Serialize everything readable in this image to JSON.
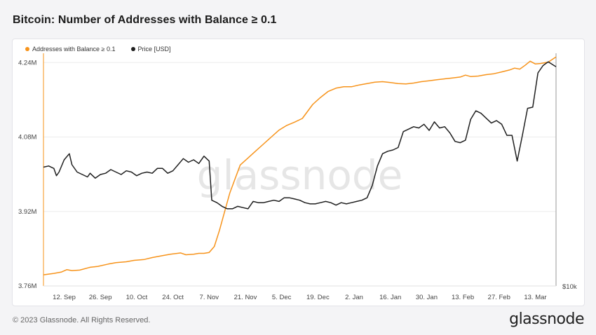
{
  "title": "Bitcoin: Number of Addresses with Balance ≥ 0.1",
  "footer": "© 2023 Glassnode. All Rights Reserved.",
  "brand": "glassnode",
  "watermark": "glassnode",
  "chart_data": {
    "type": "line",
    "legend_position": "top-left",
    "grid": true,
    "y_left": {
      "ticks": [
        "3.76M",
        "3.92M",
        "4.08M",
        "4.24M"
      ],
      "values": [
        3760000,
        3920000,
        4080000,
        4240000
      ],
      "range": [
        3760000,
        4260000
      ]
    },
    "y_right": {
      "label": "$10k"
    },
    "x_ticks": [
      "12. Sep",
      "26. Sep",
      "10. Oct",
      "24. Oct",
      "7. Nov",
      "21. Nov",
      "5. Dec",
      "19. Dec",
      "2. Jan",
      "16. Jan",
      "30. Jan",
      "13. Feb",
      "27. Feb",
      "13. Mar"
    ],
    "x_tick_days": [
      8,
      22,
      36,
      50,
      64,
      78,
      92,
      106,
      120,
      134,
      148,
      162,
      176,
      190
    ],
    "x_range_days": [
      0,
      198
    ],
    "price_range_usd": [
      10000,
      29000
    ],
    "series": [
      {
        "name": "Addresses with Balance ≥ 0.1",
        "color": "#f7931a",
        "points": [
          [
            0,
            3784000
          ],
          [
            4,
            3787000
          ],
          [
            7,
            3790000
          ],
          [
            9,
            3795000
          ],
          [
            11,
            3793000
          ],
          [
            14,
            3794000
          ],
          [
            18,
            3800000
          ],
          [
            21,
            3802000
          ],
          [
            25,
            3807000
          ],
          [
            28,
            3810000
          ],
          [
            32,
            3812000
          ],
          [
            35,
            3815000
          ],
          [
            39,
            3817000
          ],
          [
            42,
            3821000
          ],
          [
            46,
            3825000
          ],
          [
            49,
            3828000
          ],
          [
            53,
            3831000
          ],
          [
            55,
            3827000
          ],
          [
            58,
            3828000
          ],
          [
            60,
            3830000
          ],
          [
            62,
            3830000
          ],
          [
            64,
            3832000
          ],
          [
            66,
            3845000
          ],
          [
            68,
            3880000
          ],
          [
            70,
            3920000
          ],
          [
            72,
            3960000
          ],
          [
            74,
            3990000
          ],
          [
            76,
            4020000
          ],
          [
            79,
            4035000
          ],
          [
            82,
            4050000
          ],
          [
            85,
            4065000
          ],
          [
            88,
            4080000
          ],
          [
            91,
            4095000
          ],
          [
            94,
            4105000
          ],
          [
            97,
            4112000
          ],
          [
            100,
            4120000
          ],
          [
            102,
            4135000
          ],
          [
            104,
            4150000
          ],
          [
            107,
            4165000
          ],
          [
            110,
            4178000
          ],
          [
            113,
            4185000
          ],
          [
            116,
            4188000
          ],
          [
            119,
            4188000
          ],
          [
            122,
            4192000
          ],
          [
            125,
            4195000
          ],
          [
            128,
            4198000
          ],
          [
            131,
            4199000
          ],
          [
            134,
            4197000
          ],
          [
            137,
            4195000
          ],
          [
            140,
            4194000
          ],
          [
            143,
            4196000
          ],
          [
            146,
            4199000
          ],
          [
            149,
            4201000
          ],
          [
            152,
            4203000
          ],
          [
            155,
            4205000
          ],
          [
            158,
            4207000
          ],
          [
            161,
            4209000
          ],
          [
            163,
            4213000
          ],
          [
            165,
            4210000
          ],
          [
            168,
            4211000
          ],
          [
            171,
            4214000
          ],
          [
            174,
            4216000
          ],
          [
            177,
            4220000
          ],
          [
            180,
            4224000
          ],
          [
            182,
            4228000
          ],
          [
            184,
            4226000
          ],
          [
            186,
            4234000
          ],
          [
            188,
            4243000
          ],
          [
            190,
            4237000
          ],
          [
            192,
            4238000
          ],
          [
            195,
            4241000
          ],
          [
            198,
            4252000
          ]
        ]
      },
      {
        "name": "Price [USD]",
        "color": "#1f1f1f",
        "points": [
          [
            0,
            19700
          ],
          [
            2,
            19800
          ],
          [
            4,
            19600
          ],
          [
            5,
            19000
          ],
          [
            6,
            19300
          ],
          [
            8,
            20300
          ],
          [
            10,
            20800
          ],
          [
            11,
            19900
          ],
          [
            13,
            19300
          ],
          [
            15,
            19100
          ],
          [
            17,
            18900
          ],
          [
            18,
            19200
          ],
          [
            20,
            18800
          ],
          [
            22,
            19100
          ],
          [
            24,
            19200
          ],
          [
            26,
            19500
          ],
          [
            28,
            19300
          ],
          [
            30,
            19100
          ],
          [
            32,
            19400
          ],
          [
            34,
            19300
          ],
          [
            36,
            19000
          ],
          [
            38,
            19200
          ],
          [
            40,
            19300
          ],
          [
            42,
            19200
          ],
          [
            44,
            19600
          ],
          [
            46,
            19600
          ],
          [
            48,
            19200
          ],
          [
            50,
            19400
          ],
          [
            52,
            19900
          ],
          [
            54,
            20400
          ],
          [
            56,
            20100
          ],
          [
            58,
            20300
          ],
          [
            60,
            20000
          ],
          [
            62,
            20600
          ],
          [
            64,
            20200
          ],
          [
            65,
            17000
          ],
          [
            67,
            16800
          ],
          [
            69,
            16500
          ],
          [
            71,
            16300
          ],
          [
            73,
            16300
          ],
          [
            75,
            16500
          ],
          [
            77,
            16400
          ],
          [
            79,
            16300
          ],
          [
            81,
            16900
          ],
          [
            83,
            16800
          ],
          [
            85,
            16800
          ],
          [
            87,
            16900
          ],
          [
            89,
            17000
          ],
          [
            91,
            16900
          ],
          [
            93,
            17200
          ],
          [
            95,
            17200
          ],
          [
            97,
            17100
          ],
          [
            99,
            17000
          ],
          [
            101,
            16800
          ],
          [
            103,
            16700
          ],
          [
            105,
            16700
          ],
          [
            107,
            16800
          ],
          [
            109,
            16900
          ],
          [
            111,
            16800
          ],
          [
            113,
            16600
          ],
          [
            115,
            16800
          ],
          [
            117,
            16700
          ],
          [
            119,
            16800
          ],
          [
            121,
            16900
          ],
          [
            123,
            17000
          ],
          [
            125,
            17200
          ],
          [
            127,
            18200
          ],
          [
            129,
            19800
          ],
          [
            131,
            20800
          ],
          [
            133,
            21000
          ],
          [
            135,
            21100
          ],
          [
            137,
            21300
          ],
          [
            139,
            22600
          ],
          [
            141,
            22800
          ],
          [
            143,
            23000
          ],
          [
            145,
            22900
          ],
          [
            147,
            23200
          ],
          [
            149,
            22700
          ],
          [
            151,
            23400
          ],
          [
            153,
            22900
          ],
          [
            155,
            23000
          ],
          [
            157,
            22500
          ],
          [
            159,
            21800
          ],
          [
            161,
            21700
          ],
          [
            163,
            21900
          ],
          [
            165,
            23600
          ],
          [
            167,
            24300
          ],
          [
            169,
            24100
          ],
          [
            171,
            23700
          ],
          [
            173,
            23300
          ],
          [
            175,
            23500
          ],
          [
            177,
            23200
          ],
          [
            179,
            22300
          ],
          [
            181,
            22300
          ],
          [
            183,
            20200
          ],
          [
            185,
            22300
          ],
          [
            187,
            24500
          ],
          [
            189,
            24600
          ],
          [
            191,
            27400
          ],
          [
            193,
            28000
          ],
          [
            195,
            28300
          ],
          [
            198,
            27900
          ]
        ]
      }
    ]
  }
}
